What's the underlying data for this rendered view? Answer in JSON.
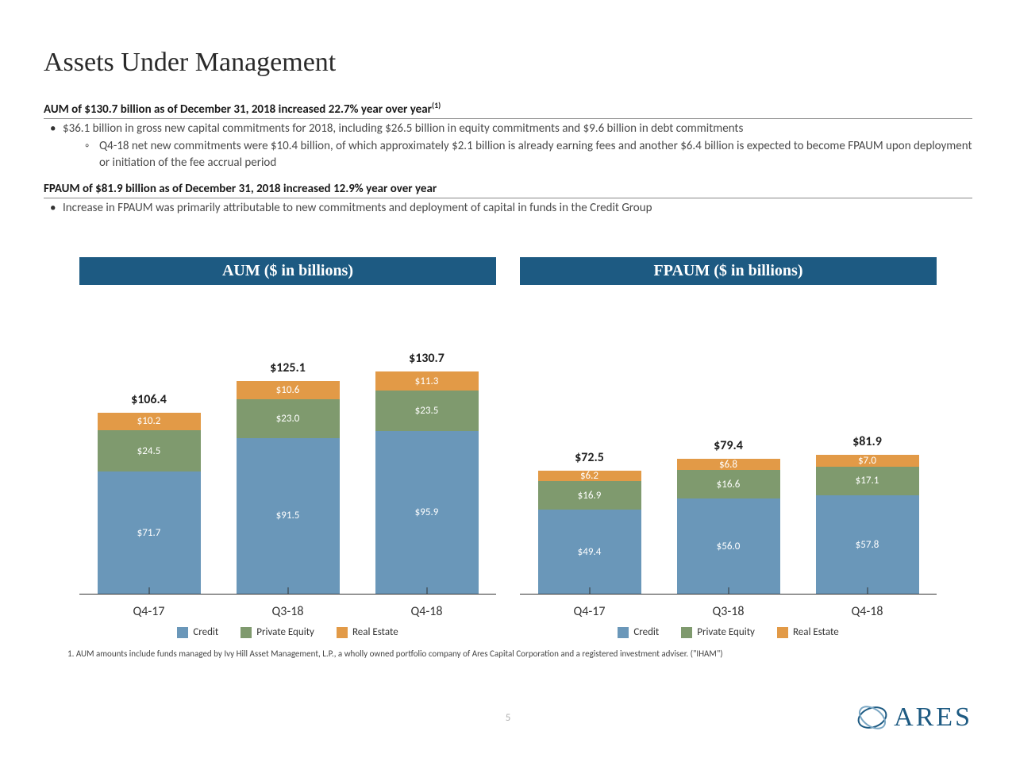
{
  "title": "Assets Under Management",
  "section1": {
    "heading": "AUM of $130.7 billion as of December 31, 2018 increased 22.7% year over year",
    "heading_sup": "(1)",
    "bullet1": "$36.1 billion in gross new capital commitments for 2018, including $26.5 billion in equity commitments and $9.6 billion in debt commitments",
    "sub1": "Q4-18 net new commitments were $10.4 billion, of which approximately $2.1 billion is already earning fees and another $6.4 billion is expected to become FPAUM upon deployment or initiation of the fee accrual period"
  },
  "section2": {
    "heading": "FPAUM of $81.9 billion as of December 31, 2018 increased 12.9% year over year",
    "bullet1": "Increase in FPAUM was primarily attributable to new commitments and deployment of capital in funds in the Credit Group"
  },
  "colors": {
    "credit": "#6a97b9",
    "private_equity": "#7f9a6e",
    "real_estate": "#e29a47",
    "header": "#1d5a82"
  },
  "legend": {
    "credit": "Credit",
    "private_equity": "Private Equity",
    "real_estate": "Real Estate"
  },
  "chart_aum": {
    "title": "AUM ($ in billions)",
    "ymax": 140,
    "categories": [
      "Q4-17",
      "Q3-18",
      "Q4-18"
    ],
    "bars": [
      {
        "total": "$106.4",
        "segs": [
          {
            "v": 71.7,
            "l": "$71.7",
            "c": "credit"
          },
          {
            "v": 24.5,
            "l": "$24.5",
            "c": "private_equity"
          },
          {
            "v": 10.2,
            "l": "$10.2",
            "c": "real_estate"
          }
        ]
      },
      {
        "total": "$125.1",
        "segs": [
          {
            "v": 91.5,
            "l": "$91.5",
            "c": "credit"
          },
          {
            "v": 23.0,
            "l": "$23.0",
            "c": "private_equity"
          },
          {
            "v": 10.6,
            "l": "$10.6",
            "c": "real_estate"
          }
        ]
      },
      {
        "total": "$130.7",
        "segs": [
          {
            "v": 95.9,
            "l": "$95.9",
            "c": "credit"
          },
          {
            "v": 23.5,
            "l": "$23.5",
            "c": "private_equity"
          },
          {
            "v": 11.3,
            "l": "$11.3",
            "c": "real_estate"
          }
        ]
      }
    ]
  },
  "chart_fpaum": {
    "title": "FPAUM ($ in billions)",
    "ymax": 140,
    "categories": [
      "Q4-17",
      "Q3-18",
      "Q4-18"
    ],
    "bars": [
      {
        "total": "$72.5",
        "segs": [
          {
            "v": 49.4,
            "l": "$49.4",
            "c": "credit"
          },
          {
            "v": 16.9,
            "l": "$16.9",
            "c": "private_equity"
          },
          {
            "v": 6.2,
            "l": "$6.2",
            "c": "real_estate"
          }
        ]
      },
      {
        "total": "$79.4",
        "segs": [
          {
            "v": 56.0,
            "l": "$56.0",
            "c": "credit"
          },
          {
            "v": 16.6,
            "l": "$16.6",
            "c": "private_equity"
          },
          {
            "v": 6.8,
            "l": "$6.8",
            "c": "real_estate"
          }
        ]
      },
      {
        "total": "$81.9",
        "segs": [
          {
            "v": 57.8,
            "l": "$57.8",
            "c": "credit"
          },
          {
            "v": 17.1,
            "l": "$17.1",
            "c": "private_equity"
          },
          {
            "v": 7.0,
            "l": "$7.0",
            "c": "real_estate"
          }
        ]
      }
    ]
  },
  "footnote": "1.  AUM amounts include funds managed by Ivy Hill Asset Management, L.P., a wholly owned portfolio company of Ares Capital Corporation and a registered investment adviser. (\"IHAM\")",
  "page_number": "5",
  "logo_text": "ARES"
}
